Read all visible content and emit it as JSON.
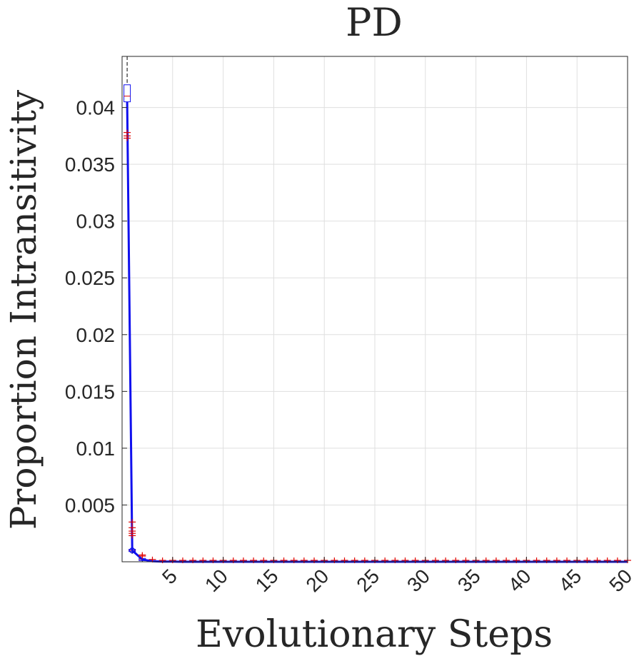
{
  "chart_data": {
    "type": "line",
    "title": "PD",
    "xlabel": "Evolutionary Steps",
    "ylabel": "Proportion Intransitivity",
    "xlim": [
      0,
      50
    ],
    "ylim": [
      0,
      0.0445
    ],
    "xticks": [
      5,
      10,
      15,
      20,
      25,
      30,
      35,
      40,
      45,
      50
    ],
    "xtick_labels": [
      "5",
      "10",
      "15",
      "20",
      "25",
      "30",
      "35",
      "40",
      "45",
      "50"
    ],
    "yticks": [
      0.005,
      0.01,
      0.015,
      0.02,
      0.025,
      0.03,
      0.035,
      0.04
    ],
    "ytick_labels": [
      "0.005",
      "0.01",
      "0.015",
      "0.02",
      "0.025",
      "0.03",
      "0.035",
      "0.04"
    ],
    "grid": true,
    "colors": {
      "line": "#1010ee",
      "outliers": "#e00000",
      "box": "#1010ee",
      "whisker": "#000000"
    },
    "series": [
      {
        "x": [
          0.5,
          1,
          2,
          3,
          4,
          5,
          6,
          7,
          8,
          9,
          10,
          11,
          12,
          13,
          14,
          15,
          16,
          17,
          18,
          19,
          20,
          21,
          22,
          23,
          24,
          25,
          26,
          27,
          28,
          29,
          30,
          31,
          32,
          33,
          34,
          35,
          36,
          37,
          38,
          39,
          40,
          41,
          42,
          43,
          44,
          45,
          46,
          47,
          48,
          49,
          50
        ],
        "y": [
          0.0405,
          0.001,
          0.0002,
          5e-05,
          2e-05,
          1e-05,
          0,
          0,
          0,
          0,
          0,
          0,
          0,
          0,
          0,
          0,
          0,
          0,
          0,
          0,
          0,
          0,
          0,
          0,
          0,
          0,
          0,
          0,
          0,
          0,
          0,
          0,
          0,
          0,
          0,
          0,
          0,
          0,
          0,
          0,
          0,
          0,
          0,
          0,
          0,
          0,
          0,
          0,
          0,
          0,
          0
        ]
      }
    ],
    "boxes": [
      {
        "x": 0.5,
        "q1": 0.0405,
        "q3": 0.042,
        "median": 0.041,
        "whisker_low": 0.0395,
        "whisker_high": 0.0445,
        "outliers": [
          0.0378,
          0.0375,
          0.0373
        ]
      },
      {
        "x": 1,
        "q1": 0.0009,
        "q3": 0.0011,
        "median": 0.001,
        "whisker_low": 0.0007,
        "whisker_high": 0.0013,
        "outliers": [
          0.0035,
          0.003,
          0.0027,
          0.0025,
          0.0023
        ]
      },
      {
        "x": 2,
        "q1": 0.0001,
        "q3": 0.0003,
        "median": 0.0002,
        "whisker_low": 0.0,
        "whisker_high": 0.0004,
        "outliers": [
          0.0006,
          0.0005
        ]
      },
      {
        "x": 3,
        "q1": 0.0,
        "q3": 0.0001,
        "median": 5e-05,
        "whisker_low": 0.0,
        "whisker_high": 0.0001,
        "outliers": [
          0.0002
        ]
      }
    ],
    "baseline_outliers_x": [
      4,
      5,
      6,
      7,
      8,
      9,
      10,
      11,
      12,
      13,
      14,
      15,
      16,
      17,
      18,
      19,
      20,
      21,
      22,
      23,
      24,
      25,
      26,
      27,
      28,
      29,
      30,
      31,
      32,
      33,
      34,
      35,
      36,
      37,
      38,
      39,
      40,
      41,
      42,
      43,
      44,
      45,
      46,
      47,
      48,
      49,
      50
    ]
  }
}
